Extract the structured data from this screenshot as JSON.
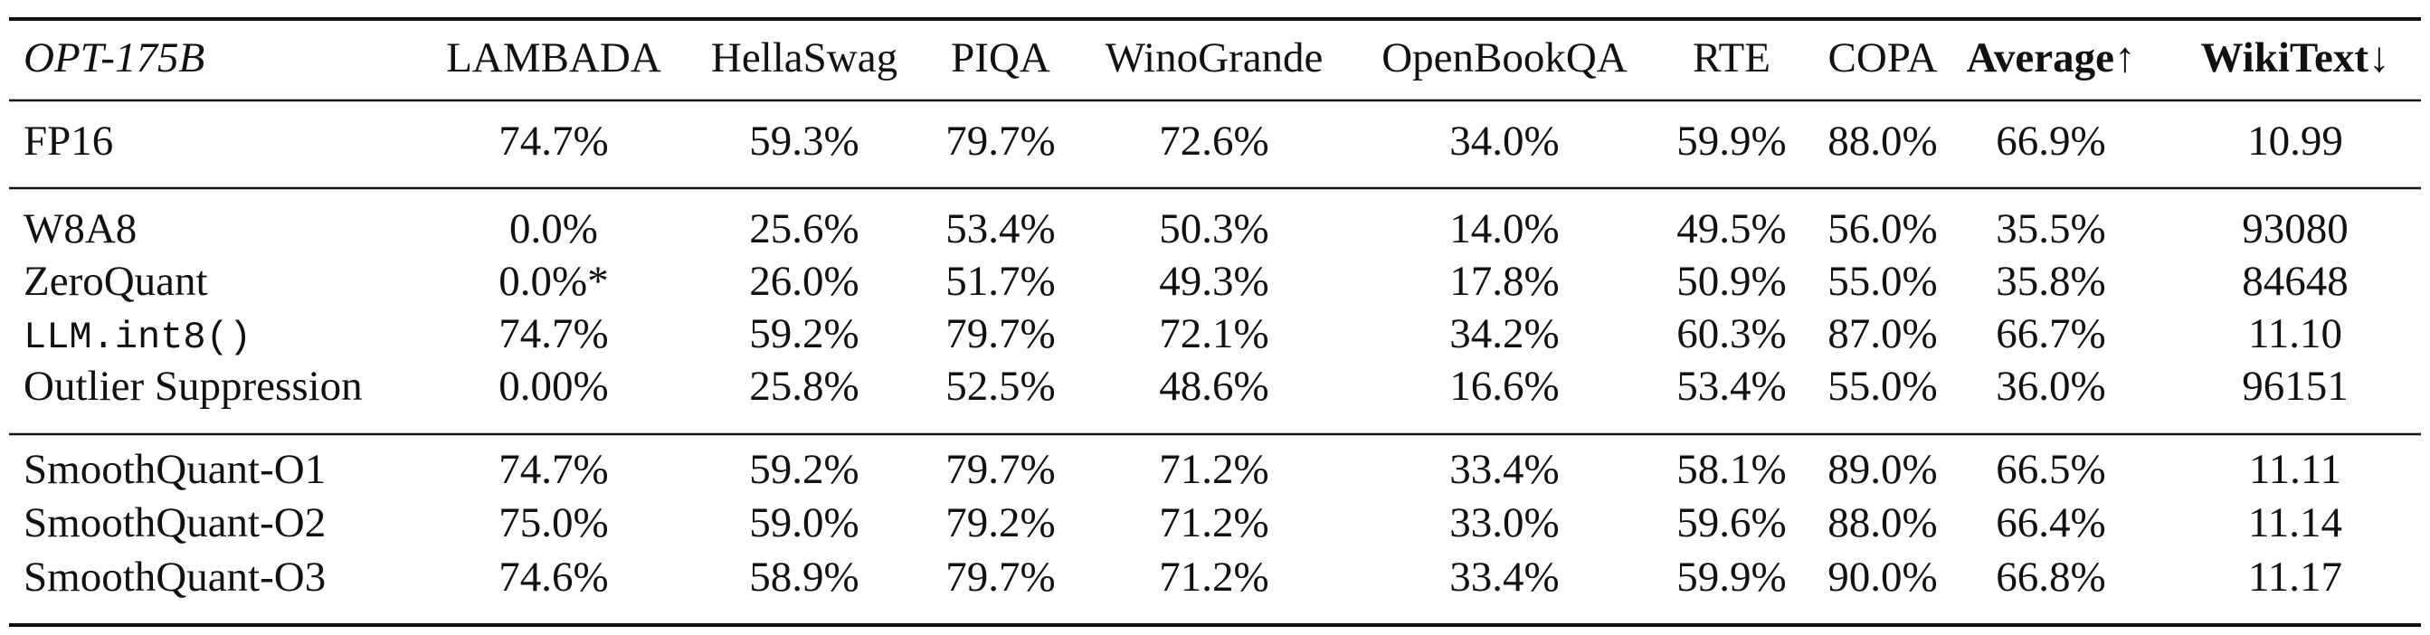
{
  "table": {
    "header": [
      "OPT-175B",
      "LAMBADA",
      "HellaSwag",
      "PIQA",
      "WinoGrande",
      "OpenBookQA",
      "RTE",
      "COPA",
      "Average↑",
      "WikiText↓"
    ],
    "sections": [
      [
        [
          "FP16",
          "74.7%",
          "59.3%",
          "79.7%",
          "72.6%",
          "34.0%",
          "59.9%",
          "88.0%",
          "66.9%",
          "10.99"
        ]
      ],
      [
        [
          "W8A8",
          "0.0%",
          "25.6%",
          "53.4%",
          "50.3%",
          "14.0%",
          "49.5%",
          "56.0%",
          "35.5%",
          "93080"
        ],
        [
          "ZeroQuant",
          "0.0%*",
          "26.0%",
          "51.7%",
          "49.3%",
          "17.8%",
          "50.9%",
          "55.0%",
          "35.8%",
          "84648"
        ],
        [
          "LLM.int8()",
          "74.7%",
          "59.2%",
          "79.7%",
          "72.1%",
          "34.2%",
          "60.3%",
          "87.0%",
          "66.7%",
          "11.10"
        ],
        [
          "Outlier Suppression",
          "0.00%",
          "25.8%",
          "52.5%",
          "48.6%",
          "16.6%",
          "53.4%",
          "55.0%",
          "36.0%",
          "96151"
        ]
      ],
      [
        [
          "SmoothQuant-O1",
          "74.7%",
          "59.2%",
          "79.7%",
          "71.2%",
          "33.4%",
          "58.1%",
          "89.0%",
          "66.5%",
          "11.11"
        ],
        [
          "SmoothQuant-O2",
          "75.0%",
          "59.0%",
          "79.2%",
          "71.2%",
          "33.0%",
          "59.6%",
          "88.0%",
          "66.4%",
          "11.14"
        ],
        [
          "SmoothQuant-O3",
          "74.6%",
          "58.9%",
          "79.7%",
          "71.2%",
          "33.4%",
          "59.9%",
          "90.0%",
          "66.8%",
          "11.17"
        ]
      ]
    ]
  }
}
